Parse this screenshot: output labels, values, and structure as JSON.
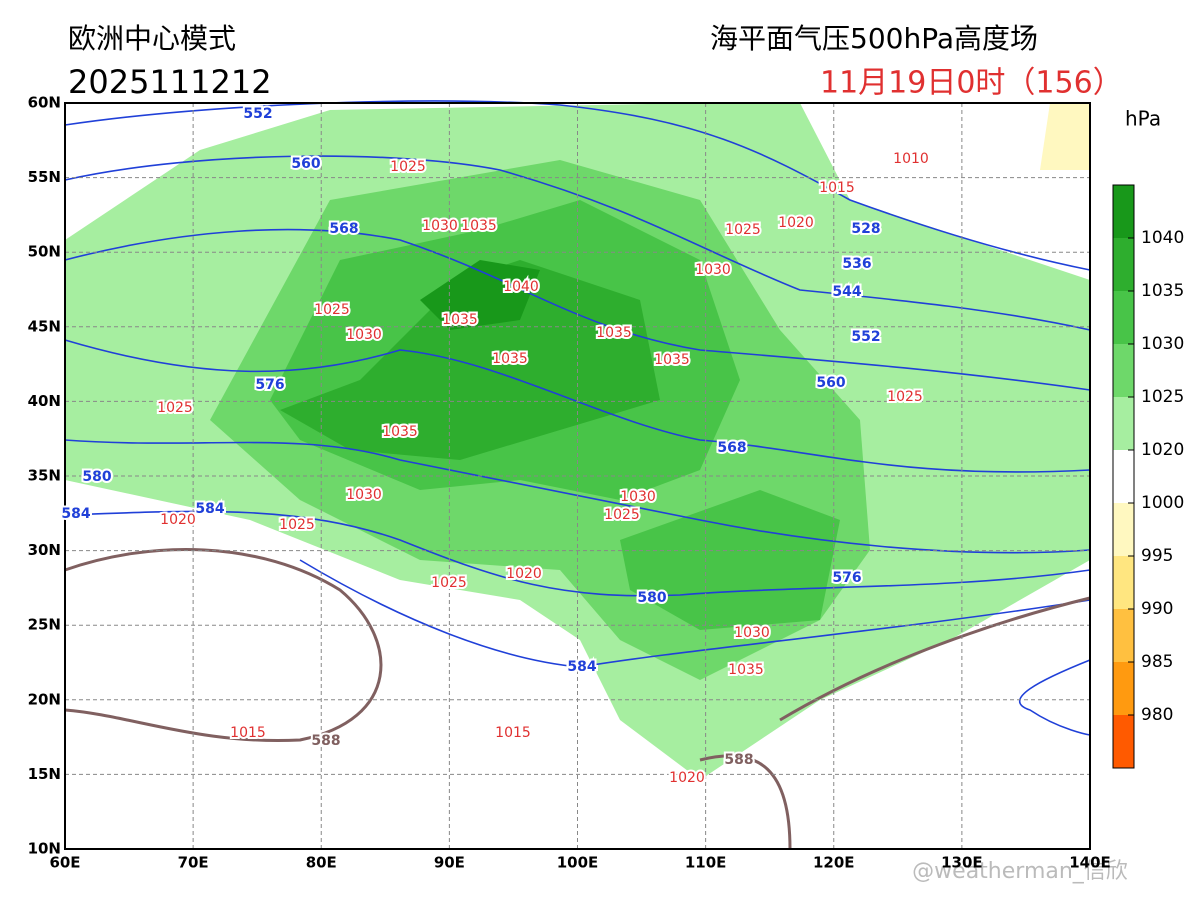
{
  "header": {
    "model": "欧洲中心模式",
    "init_time": "2025111212",
    "product": "海平面气压500hPa高度场",
    "valid_time": "11月19日0时（156）"
  },
  "map": {
    "lon_ticks": [
      "60E",
      "70E",
      "80E",
      "90E",
      "100E",
      "110E",
      "120E",
      "130E",
      "140E"
    ],
    "lat_ticks": [
      "10N",
      "15N",
      "20N",
      "25N",
      "30N",
      "35N",
      "40N",
      "45N",
      "50N",
      "55N",
      "60N"
    ]
  },
  "colorbar": {
    "unit": "hPa",
    "labels": [
      1040,
      1035,
      1030,
      1025,
      1020,
      1000,
      995,
      990,
      985,
      980
    ],
    "colors": [
      "#18981a",
      "#2eae2e",
      "#48c448",
      "#6ed86a",
      "#a6eea0",
      "#ffffff",
      "#fff8c0",
      "#ffe680",
      "#ffc040",
      "#ff9a10",
      "#ff5a00"
    ]
  },
  "height_labels": [
    "552",
    "560",
    "568",
    "576",
    "580",
    "584",
    "584",
    "528",
    "536",
    "544",
    "552",
    "560",
    "568",
    "576",
    "580",
    "584",
    "588",
    "588"
  ],
  "pressure_labels": [
    "1025",
    "1030",
    "1035",
    "1040",
    "1025",
    "1030",
    "1035",
    "1035",
    "1035",
    "1035",
    "1025",
    "1035",
    "1030",
    "1020",
    "1025",
    "1030",
    "1025",
    "1025",
    "1020",
    "1030",
    "1035",
    "1015",
    "1015",
    "1020",
    "1010",
    "1015",
    "1020",
    "1025",
    "1030",
    "1025"
  ],
  "watermark": "@weatherman_信欣"
}
